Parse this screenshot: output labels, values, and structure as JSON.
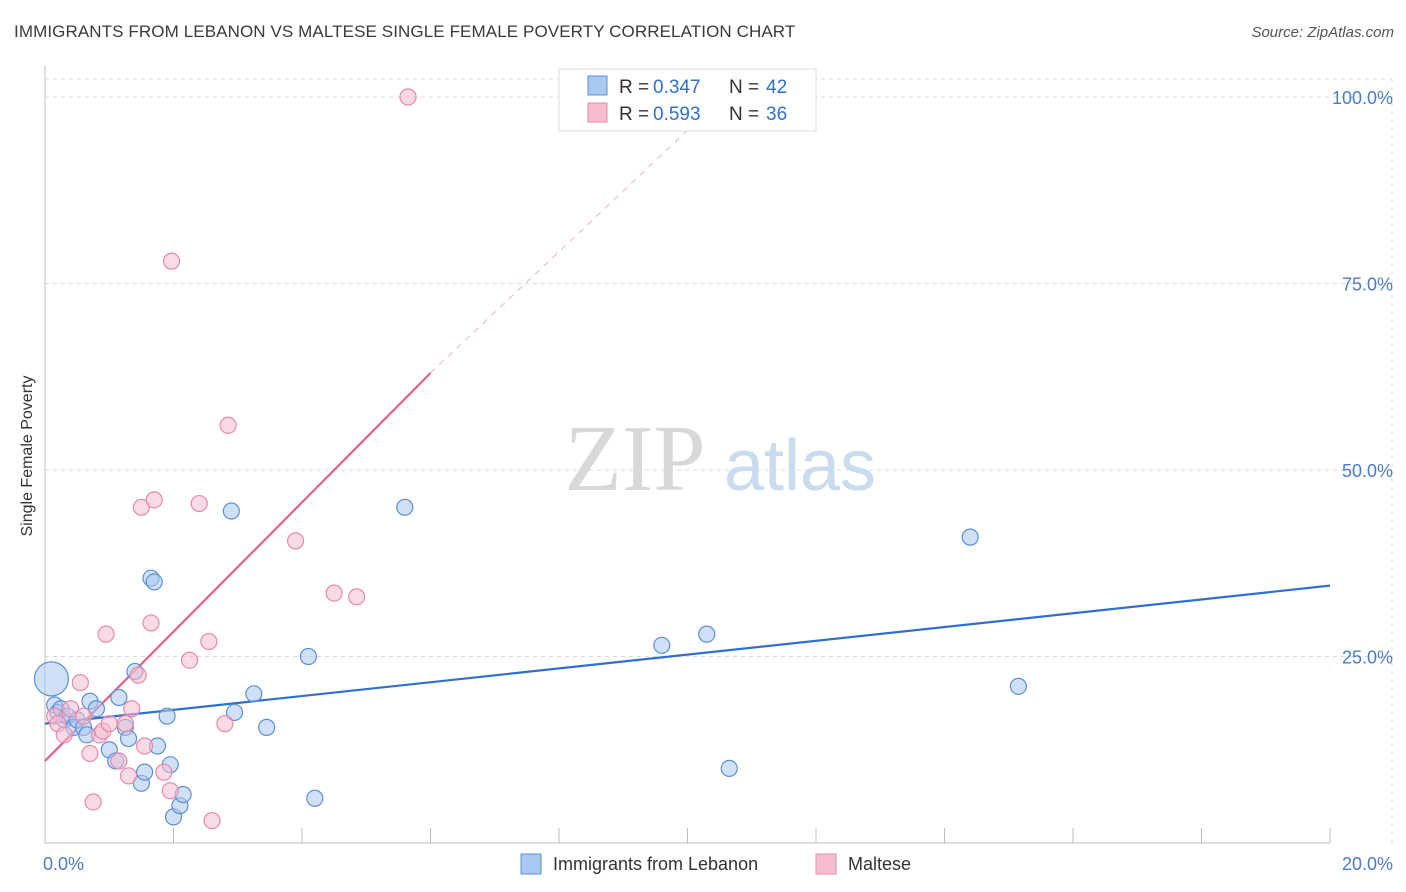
{
  "title": "IMMIGRANTS FROM LEBANON VS MALTESE SINGLE FEMALE POVERTY CORRELATION CHART",
  "source": "Source: ZipAtlas.com",
  "watermark": {
    "zip": "ZIP",
    "atlas": "atlas"
  },
  "colors": {
    "blue_fill": "#a9c8f0",
    "blue_stroke": "#5b8fd6",
    "blue_line": "#2f6fd0",
    "pink_fill": "#f6bdd0",
    "pink_stroke": "#e889a8",
    "pink_line": "#e4608a",
    "axis_text": "#4a7cc7",
    "grid": "#d8d8d8"
  },
  "chart_data": {
    "type": "scatter",
    "title": "IMMIGRANTS FROM LEBANON VS MALTESE SINGLE FEMALE POVERTY CORRELATION CHART",
    "xlabel": "",
    "ylabel": "Single Female Poverty",
    "xlim": [
      0,
      20
    ],
    "ylim": [
      0,
      100
    ],
    "x_tick_labels": [
      "0.0%",
      "20.0%"
    ],
    "y_ticks": [
      25,
      50,
      75,
      100
    ],
    "y_tick_labels": [
      "25.0%",
      "50.0%",
      "75.0%",
      "100.0%"
    ],
    "legend": [
      {
        "name": "Immigrants from Lebanon",
        "r_label": "R =",
        "r": "0.347",
        "n_label": "N =",
        "n": "42"
      },
      {
        "name": "Maltese",
        "r_label": "R =",
        "r": "0.593",
        "n_label": "N =",
        "n": "36"
      }
    ],
    "series": [
      {
        "name": "Immigrants from Lebanon",
        "color": "blue",
        "trend": {
          "x0": 0,
          "y0": 16.0,
          "x1": 20,
          "y1": 34.5
        },
        "points": [
          {
            "x": 0.1,
            "y": 22.0,
            "big": true
          },
          {
            "x": 0.15,
            "y": 18.5
          },
          {
            "x": 0.2,
            "y": 17.5
          },
          {
            "x": 0.25,
            "y": 18.0
          },
          {
            "x": 0.3,
            "y": 16.5
          },
          {
            "x": 0.35,
            "y": 17.0
          },
          {
            "x": 0.45,
            "y": 15.5
          },
          {
            "x": 0.5,
            "y": 16.5
          },
          {
            "x": 0.6,
            "y": 15.5
          },
          {
            "x": 0.65,
            "y": 14.5
          },
          {
            "x": 0.7,
            "y": 19.0
          },
          {
            "x": 0.8,
            "y": 18.0
          },
          {
            "x": 1.0,
            "y": 12.5
          },
          {
            "x": 1.1,
            "y": 11.0
          },
          {
            "x": 1.15,
            "y": 19.5
          },
          {
            "x": 1.25,
            "y": 15.5
          },
          {
            "x": 1.3,
            "y": 14.0
          },
          {
            "x": 1.4,
            "y": 23.0
          },
          {
            "x": 1.5,
            "y": 8.0
          },
          {
            "x": 1.55,
            "y": 9.5
          },
          {
            "x": 1.65,
            "y": 35.5
          },
          {
            "x": 1.7,
            "y": 35.0
          },
          {
            "x": 1.75,
            "y": 13.0
          },
          {
            "x": 1.9,
            "y": 17.0
          },
          {
            "x": 1.95,
            "y": 10.5
          },
          {
            "x": 2.0,
            "y": 3.5
          },
          {
            "x": 2.1,
            "y": 5.0
          },
          {
            "x": 2.15,
            "y": 6.5
          },
          {
            "x": 2.9,
            "y": 44.5
          },
          {
            "x": 2.95,
            "y": 17.5
          },
          {
            "x": 3.25,
            "y": 20.0
          },
          {
            "x": 3.45,
            "y": 15.5
          },
          {
            "x": 4.1,
            "y": 25.0
          },
          {
            "x": 4.2,
            "y": 6.0
          },
          {
            "x": 5.6,
            "y": 45.0
          },
          {
            "x": 9.6,
            "y": 26.5
          },
          {
            "x": 10.3,
            "y": 28.0
          },
          {
            "x": 10.65,
            "y": 10.0
          },
          {
            "x": 14.4,
            "y": 41.0
          },
          {
            "x": 15.15,
            "y": 21.0
          }
        ]
      },
      {
        "name": "Maltese",
        "color": "pink",
        "trend": {
          "x0": 0,
          "y0": 11.0,
          "x1": 6.0,
          "y1": 63.0,
          "dash_to_x": 20
        },
        "points": [
          {
            "x": 0.15,
            "y": 17.0
          },
          {
            "x": 0.2,
            "y": 16.0
          },
          {
            "x": 0.3,
            "y": 14.5
          },
          {
            "x": 0.4,
            "y": 18.0
          },
          {
            "x": 0.55,
            "y": 21.5
          },
          {
            "x": 0.6,
            "y": 17.0
          },
          {
            "x": 0.7,
            "y": 12.0
          },
          {
            "x": 0.75,
            "y": 5.5
          },
          {
            "x": 0.85,
            "y": 14.5
          },
          {
            "x": 0.9,
            "y": 15.0
          },
          {
            "x": 0.95,
            "y": 28.0
          },
          {
            "x": 1.0,
            "y": 16.0
          },
          {
            "x": 1.15,
            "y": 11.0
          },
          {
            "x": 1.25,
            "y": 16.0
          },
          {
            "x": 1.3,
            "y": 9.0
          },
          {
            "x": 1.35,
            "y": 18.0
          },
          {
            "x": 1.45,
            "y": 22.5
          },
          {
            "x": 1.5,
            "y": 45.0
          },
          {
            "x": 1.55,
            "y": 13.0
          },
          {
            "x": 1.65,
            "y": 29.5
          },
          {
            "x": 1.7,
            "y": 46.0
          },
          {
            "x": 1.85,
            "y": 9.5
          },
          {
            "x": 1.95,
            "y": 7.0
          },
          {
            "x": 1.97,
            "y": 78.0
          },
          {
            "x": 2.25,
            "y": 24.5
          },
          {
            "x": 2.4,
            "y": 45.5
          },
          {
            "x": 2.55,
            "y": 27.0
          },
          {
            "x": 2.6,
            "y": 3.0
          },
          {
            "x": 2.8,
            "y": 16.0
          },
          {
            "x": 2.85,
            "y": 56.0
          },
          {
            "x": 3.9,
            "y": 40.5
          },
          {
            "x": 4.5,
            "y": 33.5
          },
          {
            "x": 4.85,
            "y": 33.0
          },
          {
            "x": 5.65,
            "y": 100.0
          }
        ]
      }
    ]
  }
}
